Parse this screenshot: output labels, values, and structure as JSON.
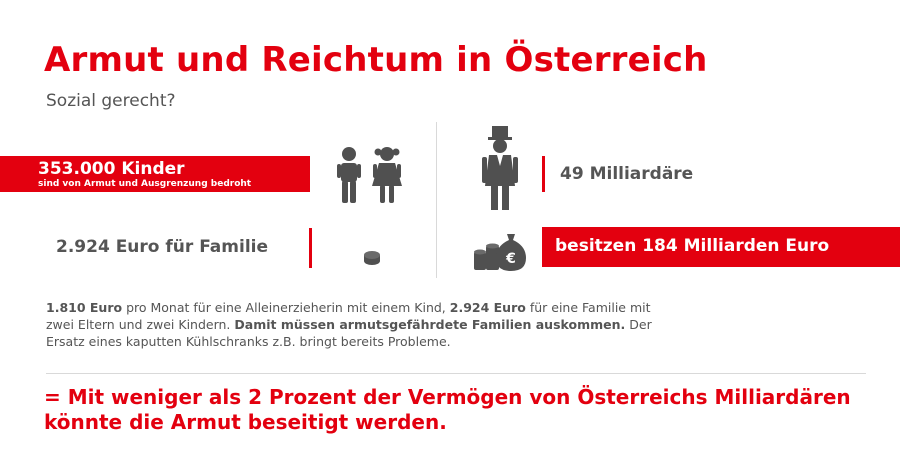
{
  "header": {
    "title": "Armut und Reichtum in Österreich",
    "subtitle": "Sozial gerecht?"
  },
  "left": {
    "children_count": "353.000 Kinder",
    "children_caption": "sind von Armut und Ausgrenzung bedroht",
    "family_amount": "2.924 Euro für Familie"
  },
  "right": {
    "billionaires": "49 Milliardäre",
    "wealth": "besitzen 184 Milliarden Euro"
  },
  "icons": {
    "children": "children-icon",
    "coins": "coins-icon",
    "billionaire": "top-hat-man-icon",
    "money": "money-bag-euro-icon"
  },
  "body": {
    "p1_bold": "1.810 Euro",
    "p1_text": " pro Monat für eine Alleinerzieherin mit einem Kind, ",
    "p2_bold": "2.924 Euro",
    "p2_text": " für eine Familie mit zwei Eltern und zwei Kindern. ",
    "p3_bold": "Damit müssen armutsgefährdete Familien auskommen.",
    "p3_text": " Der Ersatz eines kaputten Kühlschranks z.B. bringt bereits Probleme."
  },
  "conclusion": "= Mit weniger als 2 Prozent der Vermögen von Österreichs Milliardären könnte die Armut beseitigt werden.",
  "colors": {
    "accent": "#e3000f",
    "text": "#555555",
    "icon": "#505050"
  }
}
